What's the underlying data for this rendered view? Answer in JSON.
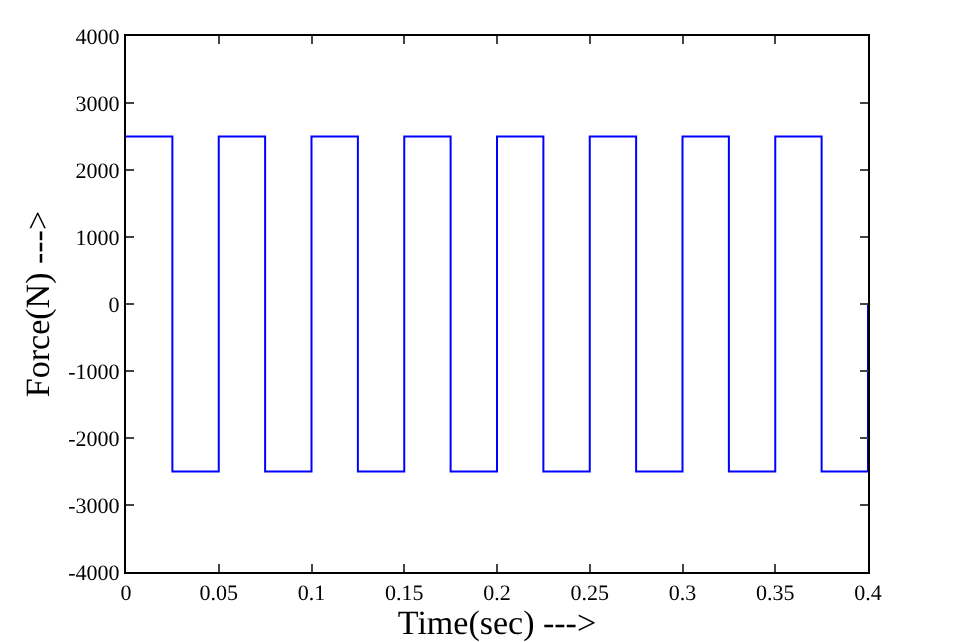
{
  "chart_data": {
    "type": "step",
    "xlabel": "Time(sec) --->",
    "ylabel": "Force(N) --->",
    "x": [
      0,
      0.025,
      0.05,
      0.075,
      0.1,
      0.125,
      0.15,
      0.175,
      0.2,
      0.225,
      0.25,
      0.275,
      0.3,
      0.325,
      0.35,
      0.375,
      0.4
    ],
    "series": [
      {
        "color": "#0000ff",
        "values": [
          2500,
          -2500,
          2500,
          -2500,
          2500,
          -2500,
          2500,
          -2500,
          2500,
          -2500,
          2500,
          -2500,
          2500,
          -2500,
          2500,
          -2500,
          0
        ]
      }
    ],
    "xlim": [
      0,
      0.4
    ],
    "xticks": [
      0,
      0.05,
      0.1,
      0.15,
      0.2,
      0.25,
      0.3,
      0.35,
      0.4
    ],
    "ylim": [
      -4000,
      4000
    ],
    "yticks": [
      -4000,
      -3000,
      -2000,
      -1000,
      0,
      1000,
      2000,
      3000,
      4000
    ],
    "grid": false
  }
}
